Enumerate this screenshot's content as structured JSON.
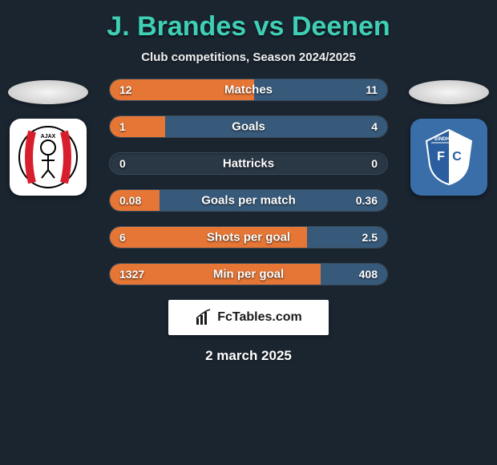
{
  "colors": {
    "background": "#1a2530",
    "title": "#3fcfb5",
    "text": "#ffffff",
    "bar_track": "#2a3744",
    "bar_left": "#e67635",
    "bar_right": "#385a7a",
    "attribution_bg": "#ffffff",
    "badge_ajax_bg": "#ffffff",
    "badge_eindhoven_bg": "#3a6ea8"
  },
  "title": "J. Brandes vs Deenen",
  "subtitle": "Club competitions, Season 2024/2025",
  "left_team": "Ajax",
  "right_team": "FC Eindhoven",
  "bars": [
    {
      "label": "Matches",
      "left_val": "12",
      "right_val": "11",
      "left_pct": 52,
      "right_pct": 48
    },
    {
      "label": "Goals",
      "left_val": "1",
      "right_val": "4",
      "left_pct": 20,
      "right_pct": 80
    },
    {
      "label": "Hattricks",
      "left_val": "0",
      "right_val": "0",
      "left_pct": 0,
      "right_pct": 0
    },
    {
      "label": "Goals per match",
      "left_val": "0.08",
      "right_val": "0.36",
      "left_pct": 18,
      "right_pct": 82
    },
    {
      "label": "Shots per goal",
      "left_val": "6",
      "right_val": "2.5",
      "left_pct": 71,
      "right_pct": 29
    },
    {
      "label": "Min per goal",
      "left_val": "1327",
      "right_val": "408",
      "left_pct": 76,
      "right_pct": 24
    }
  ],
  "attribution": "FcTables.com",
  "date": "2 march 2025"
}
